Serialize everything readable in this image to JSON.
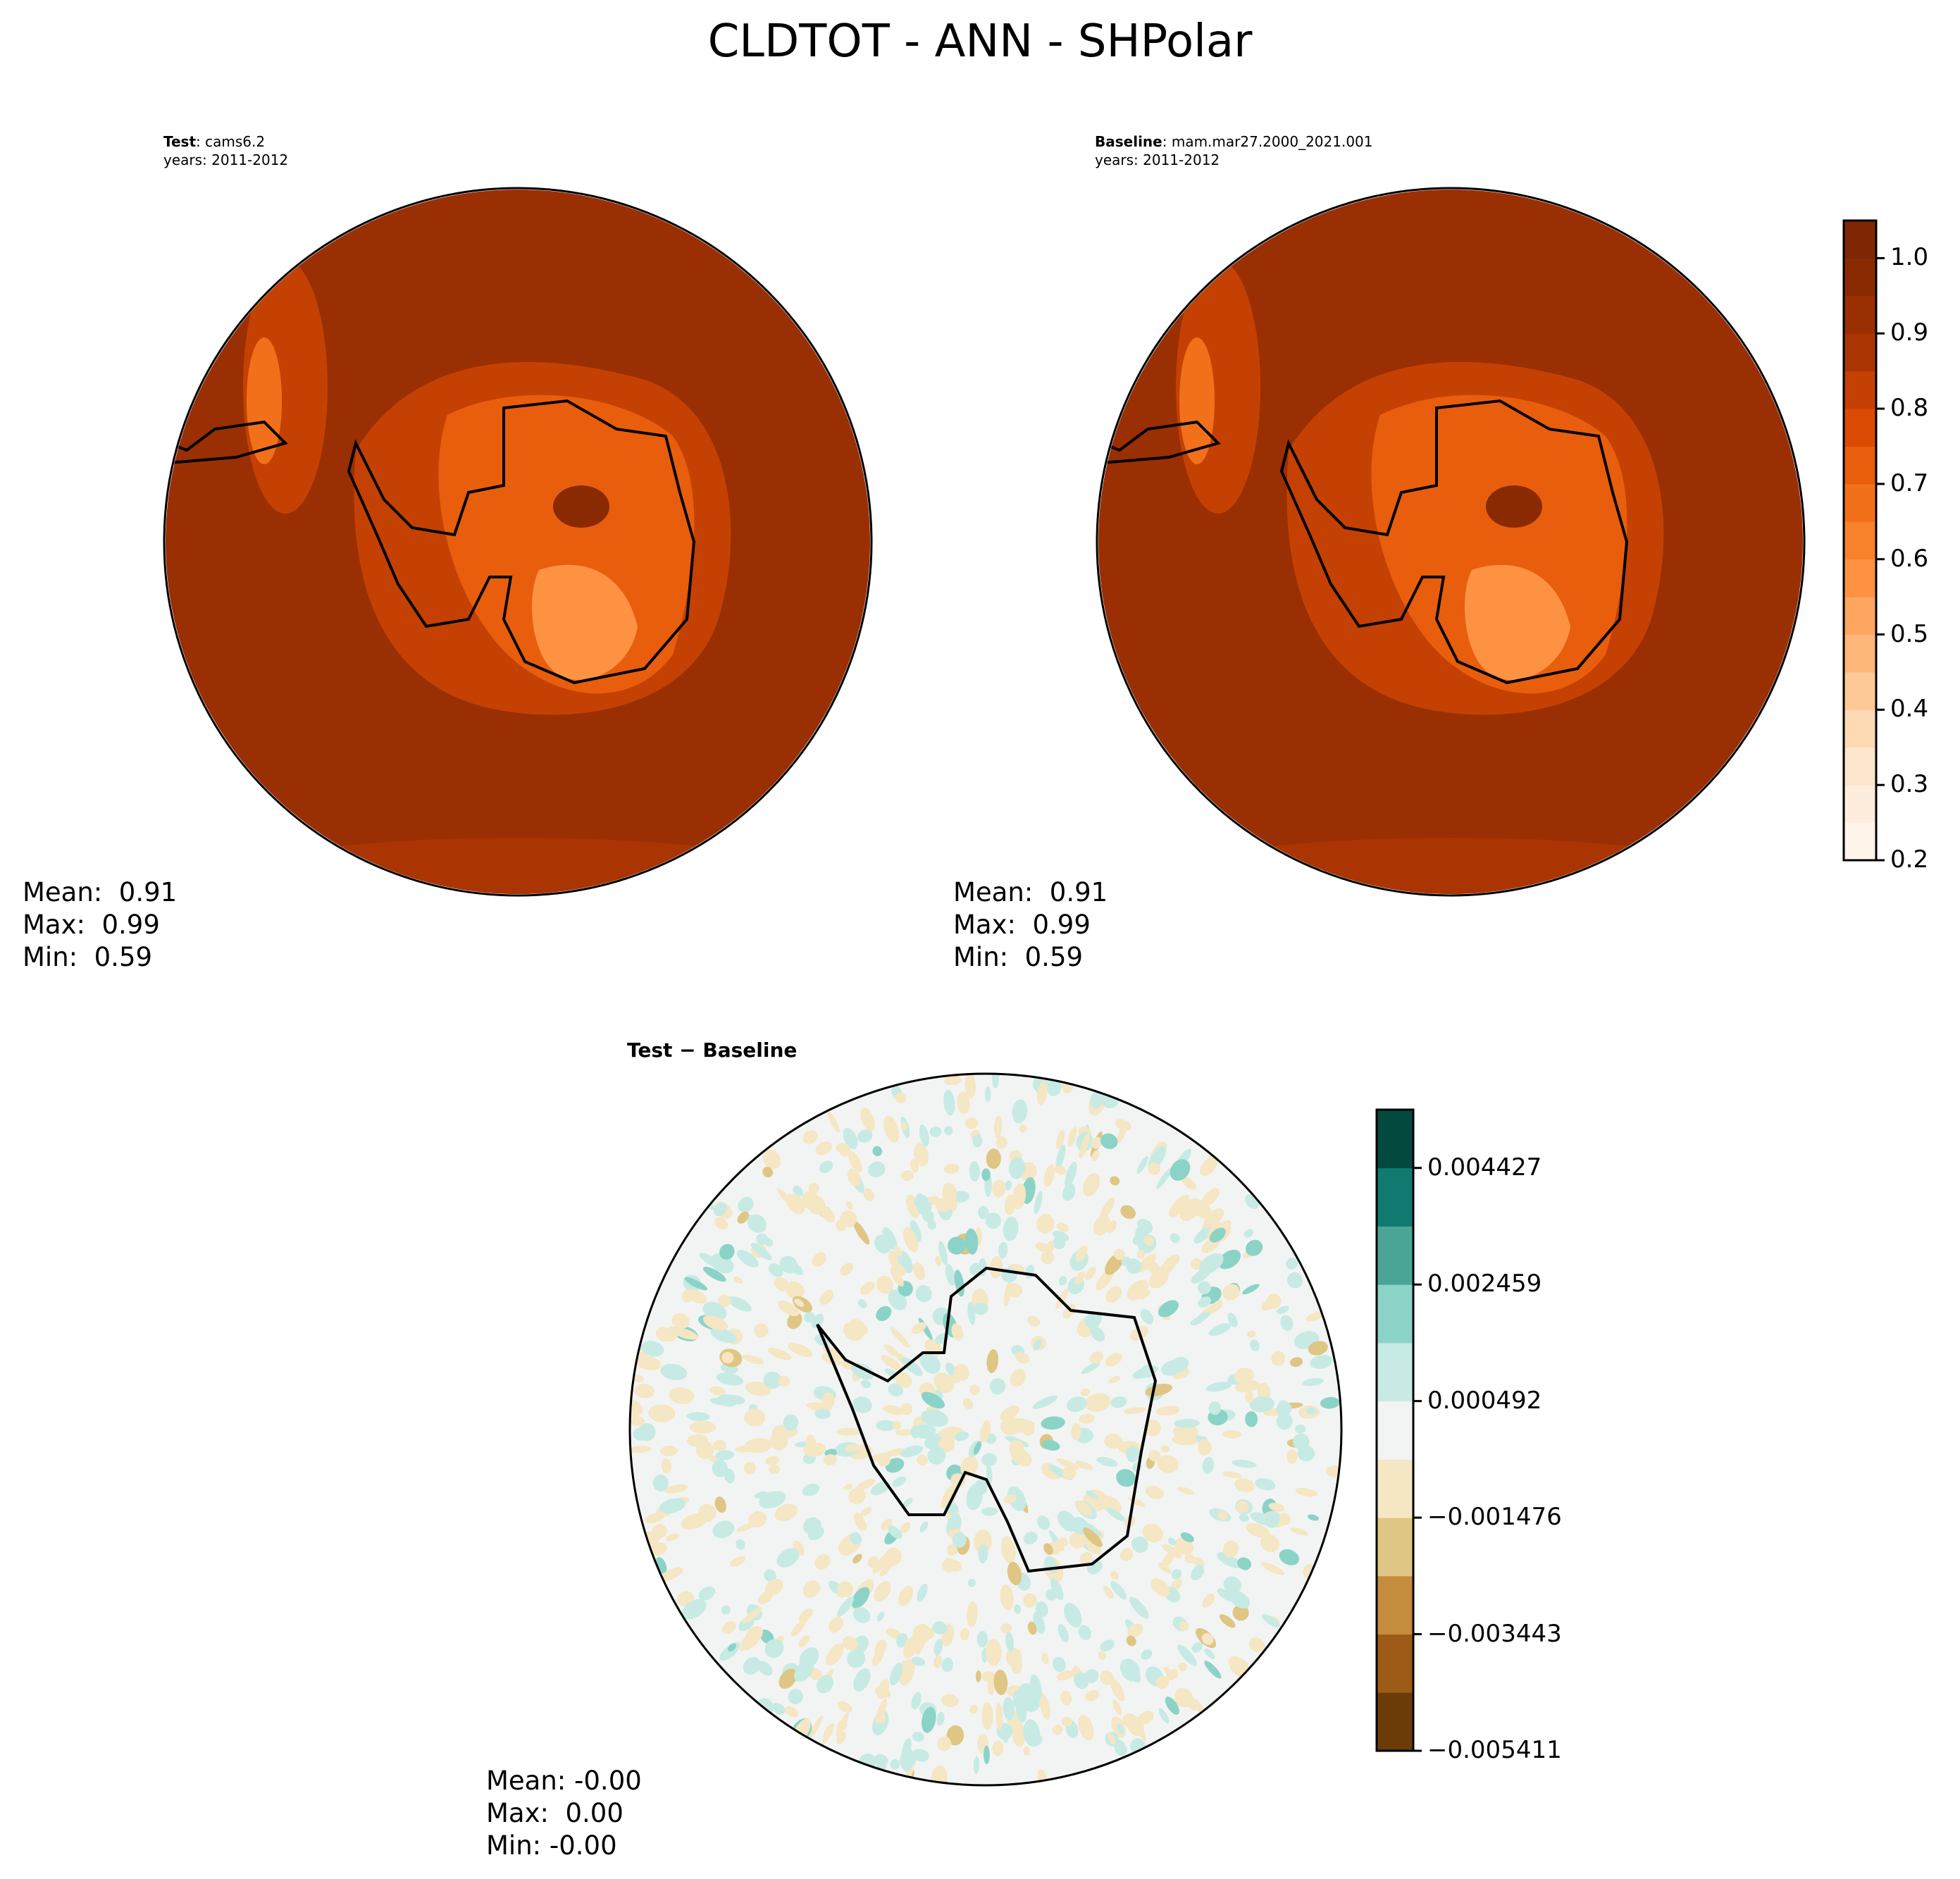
{
  "title": "CLDTOT - ANN - SHPolar",
  "panels": [
    {
      "label_bold": "Test",
      "label_rest": ": cams6.2",
      "years": "years: 2011-2012",
      "stats": {
        "mean": "Mean:  0.91",
        "max": "Max:  0.99",
        "min": "Min:  0.59"
      }
    },
    {
      "label_bold": "Baseline",
      "label_rest": ": mam.mar27.2000_2021.001",
      "years": "years: 2011-2012",
      "stats": {
        "mean": "Mean:  0.91",
        "max": "Max:  0.99",
        "min": "Min:  0.59"
      }
    },
    {
      "label_bold": "Test − Baseline",
      "stats": {
        "mean": "Mean: -0.00",
        "max": "Max:  0.00",
        "min": "Min: -0.00"
      }
    }
  ],
  "chart_data": [
    {
      "type": "heatmap",
      "projection": "south-polar-stereographic",
      "variable": "CLDTOT",
      "season": "ANN",
      "region": "SHPolar",
      "colormap": "Oranges",
      "colorbar": {
        "range": [
          0.2,
          1.05
        ],
        "step": 0.05,
        "ticks": [
          "0.2",
          "0.3",
          "0.4",
          "0.5",
          "0.6",
          "0.7",
          "0.8",
          "0.9",
          "1.0"
        ],
        "colors": [
          "#fff5eb",
          "#feeddc",
          "#fee6ce",
          "#fdd9b4",
          "#fdc997",
          "#fdb77a",
          "#fda660",
          "#fd9243",
          "#f8812c",
          "#f3701b",
          "#e85e0d",
          "#db4b03",
          "#c44103",
          "#aa3503",
          "#9a2f03",
          "#8a2a03",
          "#7f2704"
        ]
      }
    },
    {
      "type": "heatmap",
      "projection": "south-polar-stereographic",
      "colormap": "Oranges",
      "shares_colorbar_with": 0
    },
    {
      "type": "heatmap",
      "projection": "south-polar-stereographic",
      "colormap": "BrBG",
      "colorbar": {
        "range": [
          -0.005411,
          0.005411
        ],
        "ticks": [
          "−0.005411",
          "−0.003443",
          "−0.001476",
          "0.000492",
          "0.002459",
          "0.004427"
        ],
        "tick_values": [
          -0.005411,
          -0.003443,
          -0.001476,
          0.000492,
          0.002459,
          0.004427
        ],
        "colors": [
          "#6b3c07",
          "#9c5b16",
          "#c58c3e",
          "#dfc684",
          "#f5e6c4",
          "#f2f4f3",
          "#c7ebe4",
          "#8cd3c7",
          "#4ba597",
          "#117970",
          "#03493e"
        ]
      }
    }
  ]
}
